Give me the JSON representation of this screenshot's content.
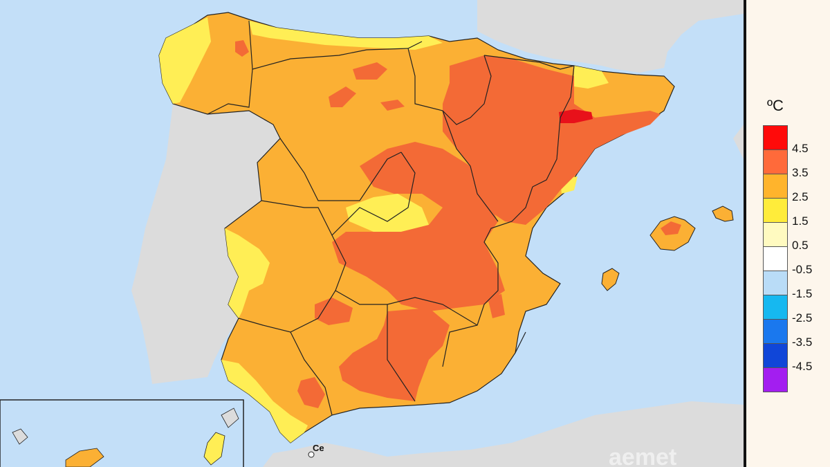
{
  "map": {
    "city_label": "Ce",
    "watermark": "aemet",
    "colors": {
      "sea": "#c3dff8",
      "land_other": "#dcdcdc",
      "c_0_5": "#fff9b8",
      "c_1_5": "#ffee55",
      "c_2_5": "#fbb034",
      "c_3_5": "#f36a36",
      "c_4_5": "#e8111a",
      "border": "#222222"
    }
  },
  "legend": {
    "unit": "ºC",
    "labels": [
      "4.5",
      "3.5",
      "2.5",
      "1.5",
      "0.5",
      "-0.5",
      "-1.5",
      "-2.5",
      "-3.5",
      "-4.5"
    ],
    "colors": [
      "#ff0a0a",
      "#ff6a3a",
      "#ffb42c",
      "#ffec3a",
      "#fffac0",
      "#ffffff",
      "#b9dcf7",
      "#16b8f0",
      "#1a78ee",
      "#1046d8",
      "#a31ef0"
    ]
  }
}
